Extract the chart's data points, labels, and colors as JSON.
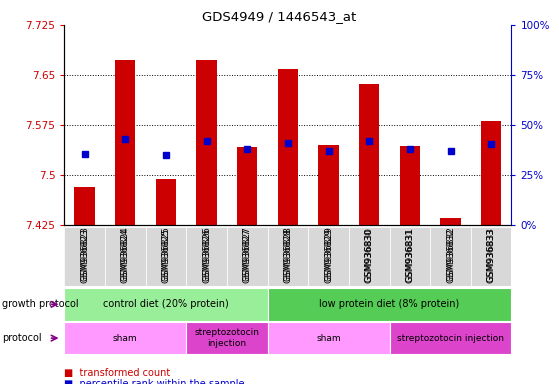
{
  "title": "GDS4949 / 1446543_at",
  "samples": [
    "GSM936823",
    "GSM936824",
    "GSM936825",
    "GSM936826",
    "GSM936827",
    "GSM936828",
    "GSM936829",
    "GSM936830",
    "GSM936831",
    "GSM936832",
    "GSM936833"
  ],
  "bar_bottom": 7.425,
  "transformed_counts": [
    7.482,
    7.672,
    7.493,
    7.673,
    7.541,
    7.659,
    7.545,
    7.637,
    7.543,
    7.435,
    7.58
  ],
  "percentile_ranks_left": [
    7.531,
    7.553,
    7.53,
    7.55,
    7.538,
    7.548,
    7.536,
    7.55,
    7.538,
    7.535,
    7.546
  ],
  "ylim_left": [
    7.425,
    7.725
  ],
  "ylim_right": [
    0,
    100
  ],
  "yticks_left": [
    7.425,
    7.5,
    7.575,
    7.65,
    7.725
  ],
  "yticks_right": [
    0,
    25,
    50,
    75,
    100
  ],
  "bar_color": "#cc0000",
  "dot_color": "#0000cc",
  "growth_protocol_groups": [
    {
      "label": "control diet (20% protein)",
      "start": 0,
      "end": 4,
      "color": "#99ee99"
    },
    {
      "label": "low protein diet (8% protein)",
      "start": 5,
      "end": 10,
      "color": "#55cc55"
    }
  ],
  "protocol_groups": [
    {
      "label": "sham",
      "start": 0,
      "end": 2,
      "color": "#ff99ff"
    },
    {
      "label": "streptozotocin\ninjection",
      "start": 3,
      "end": 4,
      "color": "#dd44cc"
    },
    {
      "label": "sham",
      "start": 5,
      "end": 7,
      "color": "#ff99ff"
    },
    {
      "label": "streptozotocin injection",
      "start": 8,
      "end": 10,
      "color": "#dd44cc"
    }
  ],
  "bar_width": 0.5
}
